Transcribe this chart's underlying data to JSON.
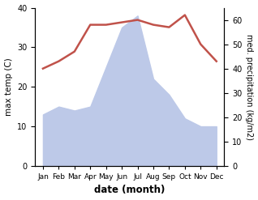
{
  "months": [
    "Jan",
    "Feb",
    "Mar",
    "Apr",
    "May",
    "Jun",
    "Jul",
    "Aug",
    "Sep",
    "Oct",
    "Nov",
    "Dec"
  ],
  "month_indices": [
    1,
    2,
    3,
    4,
    5,
    6,
    7,
    8,
    9,
    10,
    11,
    12
  ],
  "temperature": [
    40,
    43,
    47,
    58,
    58,
    59,
    60,
    58,
    57,
    62,
    50,
    43
  ],
  "precipitation": [
    13,
    15,
    14,
    15,
    25,
    35,
    38,
    22,
    18,
    12,
    10,
    10
  ],
  "temp_color": "#c0524a",
  "precip_fill_color": "#bdc9e8",
  "ylabel_left": "max temp (C)",
  "ylabel_right": "med. precipitation (kg/m2)",
  "xlabel": "date (month)",
  "ylim_left": [
    0,
    40
  ],
  "ylim_right": [
    0,
    65
  ],
  "yticks_left": [
    0,
    10,
    20,
    30,
    40
  ],
  "yticks_right": [
    0,
    10,
    20,
    30,
    40,
    50,
    60
  ],
  "bg_color": "#ffffff"
}
